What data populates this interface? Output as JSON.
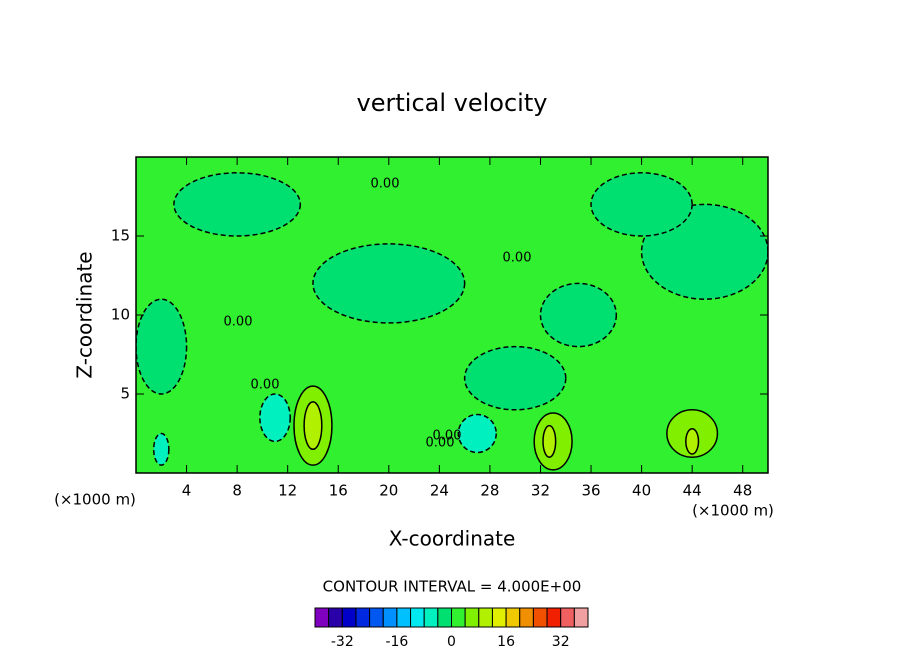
{
  "chart_data": {
    "type": "contour",
    "title": "vertical velocity",
    "xlabel": "X-coordinate",
    "ylabel": "Z-coordinate",
    "x_unit_label": "(×1000 m)",
    "xlim": [
      0,
      50
    ],
    "ylim": [
      0,
      20
    ],
    "xticks": [
      4,
      8,
      12,
      16,
      20,
      24,
      28,
      32,
      36,
      40,
      44,
      48
    ],
    "yticks": [
      5,
      10,
      15
    ],
    "contour_interval_text": "CONTOUR INTERVAL = 4.000E+00",
    "contour_labels": [
      "0.00",
      "0.00",
      "0.00",
      "0.00",
      "0.00",
      "0.00"
    ],
    "colorbar": {
      "levels": [
        -40,
        -36,
        -32,
        -28,
        -24,
        -20,
        -16,
        -12,
        -8,
        -4,
        0,
        4,
        8,
        12,
        16,
        20,
        24,
        28,
        32,
        36,
        40
      ],
      "colors": [
        "#8000c0",
        "#2a00a8",
        "#0000c8",
        "#0028e0",
        "#0058f0",
        "#0090ff",
        "#00c0ff",
        "#00e8f0",
        "#00f0c0",
        "#00e070",
        "#30f030",
        "#80f000",
        "#b0f000",
        "#e0f000",
        "#f0c800",
        "#f09000",
        "#f05000",
        "#f02000",
        "#f06060",
        "#f0a0a0"
      ],
      "ticks": [
        -32,
        -16,
        0,
        16,
        32
      ]
    },
    "features": [
      {
        "x": 20,
        "z": 12,
        "rx": 6,
        "rz": 2.5,
        "value": -2
      },
      {
        "x": 8,
        "z": 17,
        "rx": 5,
        "rz": 2,
        "value": -2
      },
      {
        "x": 45,
        "z": 14,
        "rx": 5,
        "rz": 3,
        "value": -2
      },
      {
        "x": 30,
        "z": 6,
        "rx": 4,
        "rz": 2,
        "value": -2
      },
      {
        "x": 40,
        "z": 17,
        "rx": 4,
        "rz": 2,
        "value": -2
      },
      {
        "x": 35,
        "z": 10,
        "rx": 3,
        "rz": 2,
        "value": -2
      },
      {
        "x": 2,
        "z": 8,
        "rx": 2,
        "rz": 3,
        "value": -2
      },
      {
        "x": 11,
        "z": 3.5,
        "rx": 1.2,
        "rz": 1.5,
        "value": -6
      },
      {
        "x": 27,
        "z": 2.5,
        "rx": 1.5,
        "rz": 1.2,
        "value": -6
      },
      {
        "x": 2,
        "z": 1.5,
        "rx": 0.6,
        "rz": 1,
        "value": -6
      },
      {
        "x": 14,
        "z": 3,
        "rx": 1.5,
        "rz": 2.5,
        "value": 6
      },
      {
        "x": 33,
        "z": 2,
        "rx": 1.5,
        "rz": 1.8,
        "value": 6
      },
      {
        "x": 44,
        "z": 2.5,
        "rx": 2,
        "rz": 1.5,
        "value": 6
      },
      {
        "x": 14,
        "z": 3,
        "rx": 0.7,
        "rz": 1.5,
        "value": 10
      },
      {
        "x": 32.7,
        "z": 2,
        "rx": 0.5,
        "rz": 1,
        "value": 10
      },
      {
        "x": 44,
        "z": 2,
        "rx": 0.5,
        "rz": 0.8,
        "value": 10
      }
    ]
  }
}
